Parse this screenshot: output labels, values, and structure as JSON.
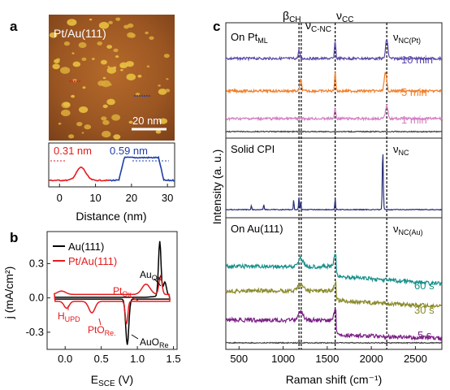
{
  "panel_labels": {
    "a": "a",
    "b": "b",
    "c": "c"
  },
  "panel_a": {
    "image_label": "Pt/Au(111)",
    "scale_bar_label": "20 nm",
    "profile": {
      "red_height": "0.31 nm",
      "blue_height": "0.59 nm",
      "xlabel": "Distance (nm)",
      "xticks": [
        "0",
        "10",
        "20",
        "30"
      ],
      "xlim": [
        -3,
        32
      ],
      "red_color": "#e41a1c",
      "blue_color": "#1f3ea8"
    }
  },
  "panel_b": {
    "xlabel_main": "E",
    "xlabel_sub": "SCE",
    "xlabel_unit": " (V)",
    "ylabel": "j (mA/cm²)",
    "xticks": [
      "0.0",
      "0.5",
      "1.0",
      "1.5"
    ],
    "yticks": [
      "0.3",
      "0.0",
      "-0.3"
    ],
    "xlim": [
      -0.25,
      1.55
    ],
    "ylim": [
      -0.45,
      0.58
    ],
    "legend": [
      {
        "label": "Au(111)",
        "color": "#000000"
      },
      {
        "label": "Pt/Au(111)",
        "color": "#e41a1c"
      }
    ],
    "annotations": {
      "au_ox": "Au",
      "au_ox_sub": "Ox",
      "pt_ox": "Pt",
      "pt_ox_sub": "Ox",
      "h_upd": "H",
      "h_upd_sub": "UPD",
      "pto_re": "PtO",
      "pto_re_sub": "Re.",
      "auo_re": "AuO",
      "auo_re_sub": "Re"
    }
  },
  "panel_c": {
    "xlabel": "Raman shift (cm⁻¹)",
    "ylabel": "Intensity (a. u.)",
    "xticks": [
      "500",
      "1000",
      "1500",
      "2000",
      "2500"
    ],
    "xlim": [
      350,
      2800
    ],
    "band_labels": [
      {
        "greek": "β",
        "sub": "CH",
        "x": 1150
      },
      {
        "greek": "ν",
        "sub": "C-NC",
        "x": 1200
      },
      {
        "greek": "ν",
        "sub": "CC",
        "x": 1590
      }
    ],
    "dashed_lines": [
      1180,
      1205,
      1590,
      2175
    ],
    "sections": {
      "top_title": "On Pt",
      "top_title_sub": "ML",
      "top_band": "ν",
      "top_band_sub": "NC(Pt)",
      "mid_title": "Solid CPI",
      "mid_band": "ν",
      "mid_band_sub": "NC",
      "bot_title": "On Au(111)",
      "bot_band": "ν",
      "bot_band_sub": "NC(Au)"
    },
    "series_labels": {
      "pt_10": "10 min",
      "pt_5": "5 min",
      "pt_1": "1 min",
      "au_60": "60 s",
      "au_30": "30 s",
      "au_5": "5 s"
    },
    "colors": {
      "pt_10": "#5b48a8",
      "pt_5": "#f07f2a",
      "pt_1": "#d47ec0",
      "baseline": "#404040",
      "solid": "#2a2f7a",
      "au_60": "#17908a",
      "au_30": "#8a8a2a",
      "au_5": "#7b1f85"
    }
  }
}
